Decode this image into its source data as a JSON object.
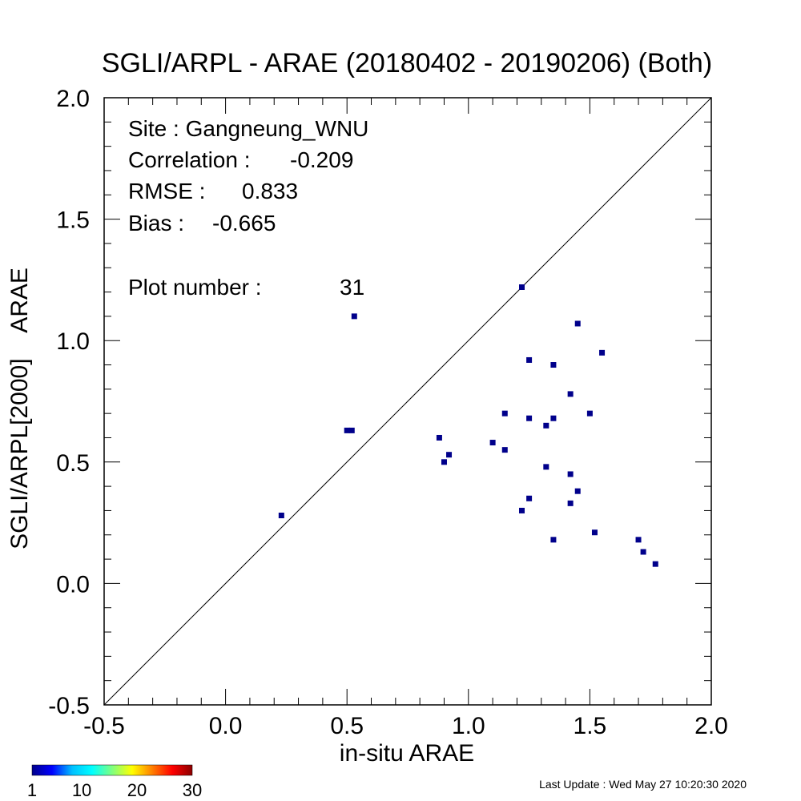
{
  "chart_data": {
    "type": "scatter",
    "title": "SGLI/ARPL - ARAE (20180402 - 20190206) (Both)",
    "xlabel": "in-situ ARAE",
    "ylabel": "SGLI/ARPL[2000]    ARAE",
    "xlim": [
      -0.5,
      2.0
    ],
    "ylim": [
      -0.5,
      2.0
    ],
    "x_ticks": [
      -0.5,
      0.0,
      0.5,
      1.0,
      1.5,
      2.0
    ],
    "y_ticks": [
      -0.5,
      0.0,
      0.5,
      1.0,
      1.5,
      2.0
    ],
    "x_tick_labels": [
      "-0.5",
      "0.0",
      "0.5",
      "1.0",
      "1.5",
      "2.0"
    ],
    "y_tick_labels": [
      "-0.5",
      "0.0",
      "0.5",
      "1.0",
      "1.5",
      "2.0"
    ],
    "grid": false,
    "one_to_one_line": true,
    "marker_color": "#00008b",
    "points": [
      {
        "x": 0.23,
        "y": 0.28
      },
      {
        "x": 0.5,
        "y": 0.63
      },
      {
        "x": 0.53,
        "y": 1.1
      },
      {
        "x": 0.88,
        "y": 0.6
      },
      {
        "x": 0.9,
        "y": 0.5
      },
      {
        "x": 0.92,
        "y": 0.53
      },
      {
        "x": 1.1,
        "y": 0.58
      },
      {
        "x": 1.15,
        "y": 0.55
      },
      {
        "x": 1.15,
        "y": 0.7
      },
      {
        "x": 1.22,
        "y": 1.22
      },
      {
        "x": 1.22,
        "y": 0.3
      },
      {
        "x": 1.25,
        "y": 0.92
      },
      {
        "x": 1.25,
        "y": 0.68
      },
      {
        "x": 1.25,
        "y": 0.35
      },
      {
        "x": 1.32,
        "y": 0.65
      },
      {
        "x": 1.32,
        "y": 0.48
      },
      {
        "x": 1.35,
        "y": 0.9
      },
      {
        "x": 1.35,
        "y": 0.68
      },
      {
        "x": 1.35,
        "y": 0.18
      },
      {
        "x": 1.42,
        "y": 0.78
      },
      {
        "x": 1.42,
        "y": 0.45
      },
      {
        "x": 1.42,
        "y": 0.33
      },
      {
        "x": 1.45,
        "y": 1.07
      },
      {
        "x": 1.45,
        "y": 0.38
      },
      {
        "x": 1.5,
        "y": 0.7
      },
      {
        "x": 1.52,
        "y": 0.21
      },
      {
        "x": 1.55,
        "y": 0.95
      },
      {
        "x": 1.7,
        "y": 0.18
      },
      {
        "x": 1.72,
        "y": 0.13
      },
      {
        "x": 1.77,
        "y": 0.08
      },
      {
        "x": 0.52,
        "y": 0.63
      }
    ]
  },
  "stats": {
    "site_line": "Site : Gangneung_WNU",
    "correlation_label": "Correlation :",
    "correlation_value": "-0.209",
    "rmse_label": "RMSE :",
    "rmse_value": "0.833",
    "bias_label": "Bias :",
    "bias_value": "-0.665",
    "plot_number_label": "Plot number :",
    "plot_number_value": "31"
  },
  "colorbar": {
    "min": 1,
    "max": 30,
    "tick_labels": [
      "1",
      "10",
      "20",
      "30"
    ],
    "tick_values": [
      1,
      10,
      20,
      30
    ],
    "colors": [
      "#00008b",
      "#0000ff",
      "#00bfff",
      "#00ffff",
      "#7fff7f",
      "#ffff00",
      "#ff7f00",
      "#ff0000",
      "#8b0000"
    ]
  },
  "footer": {
    "last_update": "Last Update : Wed May 27 10:20:30 2020"
  }
}
